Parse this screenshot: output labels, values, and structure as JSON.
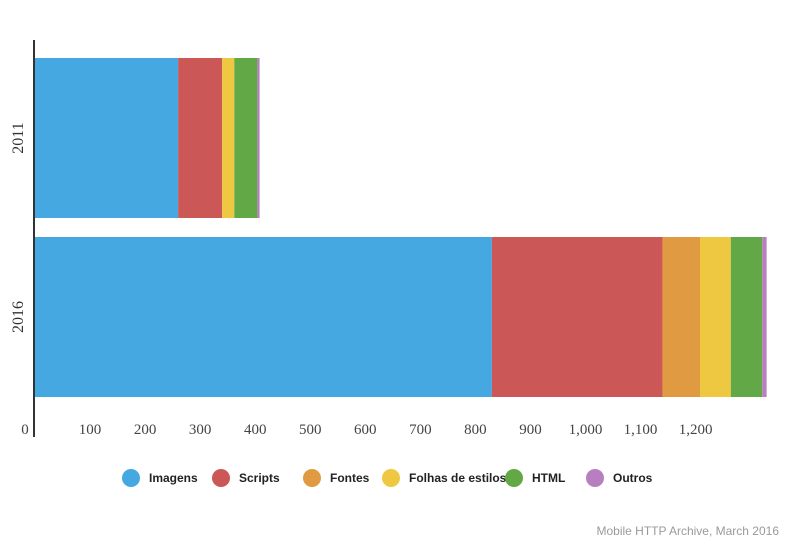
{
  "chart_data": {
    "type": "bar",
    "orientation": "horizontal",
    "stacked": true,
    "categories": [
      "2011",
      "2016"
    ],
    "series": [
      {
        "name": "Imagens",
        "color": "#45a8e0",
        "values": [
          260,
          830
        ]
      },
      {
        "name": "Scripts",
        "color": "#cb5757",
        "values": [
          80,
          310
        ]
      },
      {
        "name": "Fontes",
        "color": "#e09b42",
        "values": [
          0,
          68
        ]
      },
      {
        "name": "Folhas de estilos",
        "color": "#eec840",
        "values": [
          22,
          56
        ]
      },
      {
        "name": "HTML",
        "color": "#63a846",
        "values": [
          42,
          57
        ]
      },
      {
        "name": "Outros",
        "color": "#b87fc0",
        "values": [
          4,
          8
        ]
      }
    ],
    "xticks": [
      "0",
      "100",
      "200",
      "300",
      "400",
      "500",
      "600",
      "700",
      "800",
      "900",
      "1,000",
      "1,100",
      "1,200"
    ],
    "xlim": [
      0,
      1340
    ],
    "grid": false,
    "legend_position": "bottom",
    "source": "Mobile HTTP Archive, March 2016"
  }
}
